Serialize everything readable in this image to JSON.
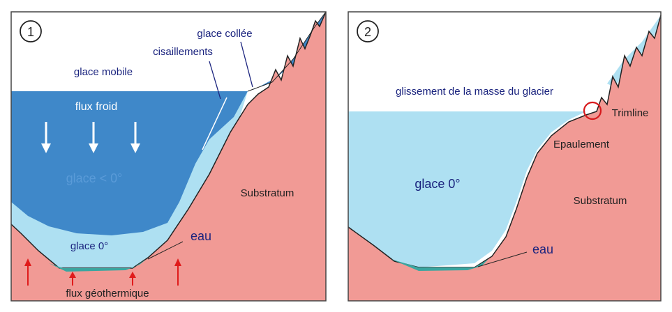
{
  "colors": {
    "substratum": "#f19a95",
    "ice_mobile": "#3f88c9",
    "ice_light": "#aee0f2",
    "water": "#3aa6a0",
    "arrow_red": "#e01b1b",
    "label_blue": "#1a237e",
    "frame": "#444444"
  },
  "panel1": {
    "number": "1",
    "labels": {
      "glace_collee": "glace collée",
      "cisaillements": "cisaillements",
      "glace_mobile": "glace mobile",
      "flux_froid": "flux froid",
      "glace_neg": "glace < 0°",
      "substratum": "Substratum",
      "glace_zero": "glace 0°",
      "eau": "eau",
      "flux_geo": "flux géothermique"
    }
  },
  "panel2": {
    "number": "2",
    "labels": {
      "glissement": "glissement de la masse du glacier",
      "trimline": "Trimline",
      "epaulement": "Epaulement",
      "glace_zero": "glace 0°",
      "substratum": "Substratum",
      "eau": "eau"
    }
  }
}
